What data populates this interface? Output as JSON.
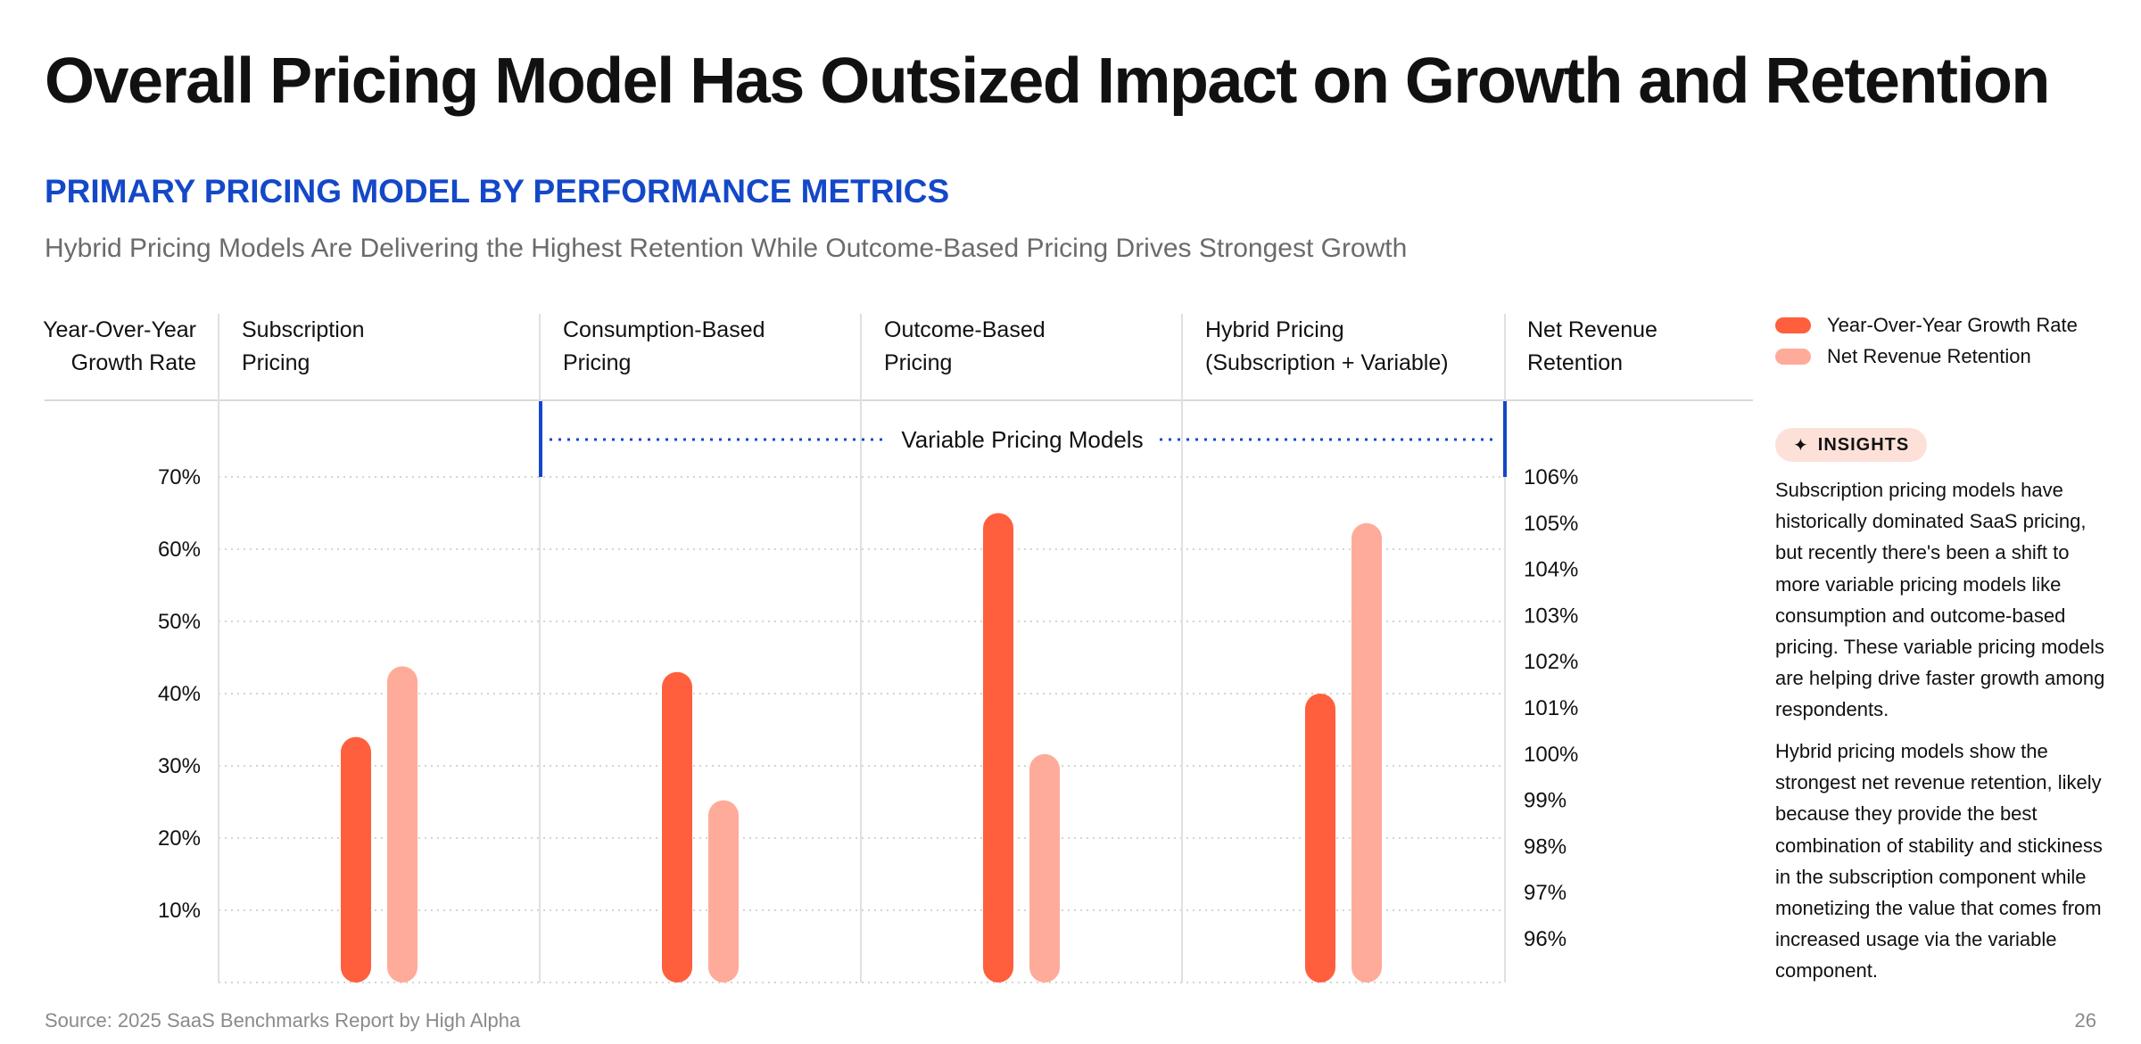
{
  "title": "Overall Pricing Model Has Outsized Impact on Growth and Retention",
  "section_title": "PRIMARY PRICING MODEL BY PERFORMANCE METRICS",
  "subtitle": "Hybrid Pricing Models Are Delivering the Highest Retention While Outcome-Based Pricing Drives Strongest Growth",
  "left_axis_header": [
    "Year-Over-Year",
    "Growth Rate"
  ],
  "right_axis_header": [
    "Net Revenue",
    "Retention"
  ],
  "group_label": "Variable Pricing Models",
  "legend": [
    {
      "label": "Year-Over-Year Growth Rate",
      "color": "#ff5f3c"
    },
    {
      "label": "Net Revenue Retention",
      "color": "#ffab9a"
    }
  ],
  "insights": {
    "badge_icon": "sparkle-icon",
    "badge_label": "INSIGHTS",
    "paragraphs": [
      "Subscription pricing models have historically dominated SaaS pricing, but recently there's been a shift to more variable pricing models like consumption and outcome-based pricing. These variable pricing models are helping drive faster growth among respondents.",
      "Hybrid pricing models show the strongest net revenue retention, likely because they provide the best combination of stability and stickiness in the subscription component while monetizing the value that comes from increased usage via the variable component."
    ]
  },
  "source": "Source: 2025 SaaS Benchmarks Report by High Alpha",
  "page_number": "26",
  "chart_data": {
    "type": "bar",
    "categories": [
      [
        "Subscription",
        "Pricing"
      ],
      [
        "Consumption-Based",
        "Pricing"
      ],
      [
        "Outcome-Based",
        "Pricing"
      ],
      [
        "Hybrid Pricing",
        "(Subscription + Variable)"
      ]
    ],
    "series": [
      {
        "name": "Year-Over-Year Growth Rate",
        "axis": "left",
        "color": "#ff5f3c",
        "values": [
          34,
          43,
          65,
          40
        ]
      },
      {
        "name": "Net Revenue Retention",
        "axis": "right",
        "color": "#ffab9a",
        "values": [
          101.9,
          99.0,
          100.0,
          105.0
        ]
      }
    ],
    "left_axis": {
      "label": "Year-Over-Year Growth Rate",
      "ylim": [
        0,
        70
      ],
      "ticks": [
        "10%",
        "20%",
        "30%",
        "40%",
        "50%",
        "60%",
        "70%"
      ],
      "tick_values": [
        10,
        20,
        30,
        40,
        50,
        60,
        70
      ]
    },
    "right_axis": {
      "label": "Net Revenue Retention",
      "ylim": [
        95,
        106
      ],
      "ticks": [
        "96%",
        "97%",
        "98%",
        "99%",
        "100%",
        "101%",
        "102%",
        "103%",
        "104%",
        "105%",
        "106%"
      ],
      "tick_values": [
        96,
        97,
        98,
        99,
        100,
        101,
        102,
        103,
        104,
        105,
        106
      ]
    },
    "grid": true,
    "legend_position": "right"
  }
}
